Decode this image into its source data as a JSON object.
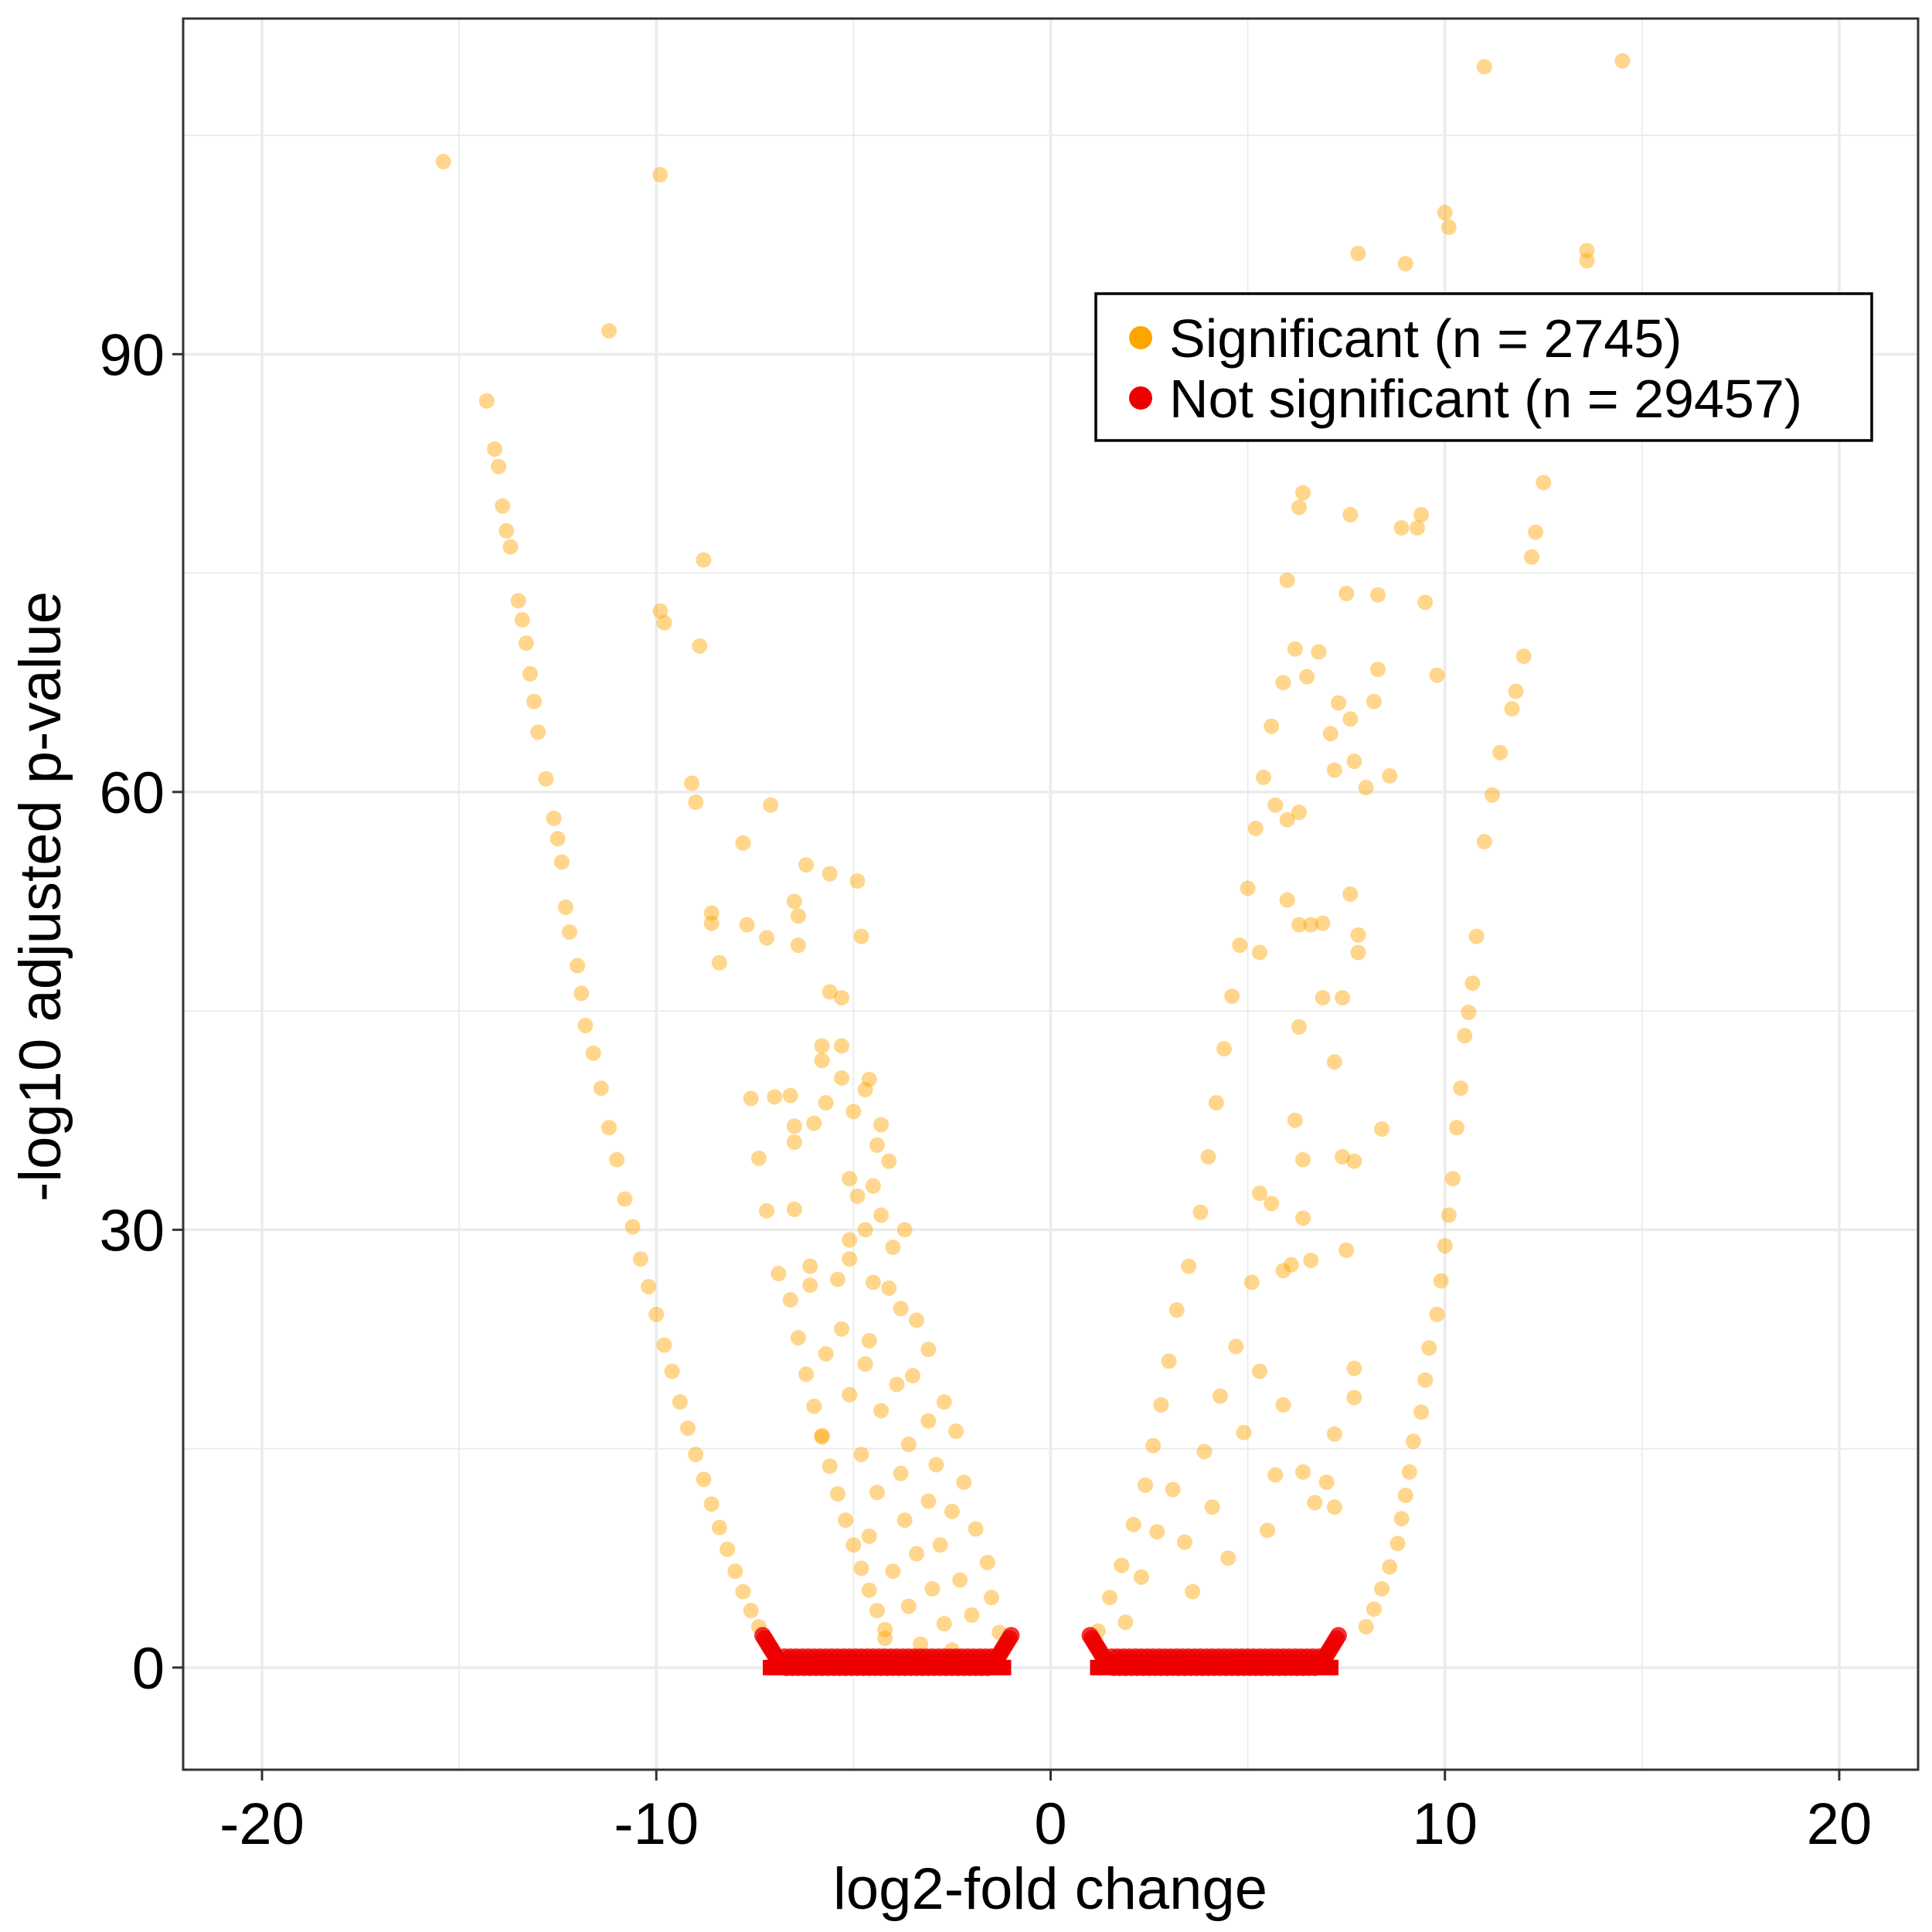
{
  "chart_data": {
    "type": "scatter",
    "title": "",
    "xlabel": "log2-fold change",
    "ylabel": "-log10 adjusted p-value",
    "xlim": [
      -22,
      22
    ],
    "ylim": [
      -7,
      113
    ],
    "x_ticks": [
      -20,
      -10,
      0,
      10,
      20
    ],
    "y_ticks": [
      0,
      30,
      60,
      90
    ],
    "x_tick_labels": [
      "-20",
      "-10",
      "0",
      "10",
      "20"
    ],
    "y_tick_labels": [
      "0",
      "30",
      "60",
      "90"
    ],
    "grid": true,
    "legend_position": "top-right",
    "series": [
      {
        "name": "Significant (n = 2745)",
        "color": "#FFA500",
        "points": [
          [
            -15.4,
            103.2
          ],
          [
            -14.3,
            86.8
          ],
          [
            -14.1,
            83.5
          ],
          [
            -14.0,
            82.3
          ],
          [
            -13.9,
            79.6
          ],
          [
            -13.8,
            77.9
          ],
          [
            -13.7,
            76.8
          ],
          [
            -13.5,
            73.1
          ],
          [
            -13.4,
            71.8
          ],
          [
            -13.3,
            70.2
          ],
          [
            -13.2,
            68.1
          ],
          [
            -13.1,
            66.2
          ],
          [
            -13.0,
            64.1
          ],
          [
            -12.8,
            60.9
          ],
          [
            -12.6,
            58.2
          ],
          [
            -12.5,
            56.8
          ],
          [
            -12.4,
            55.2
          ],
          [
            -12.3,
            52.1
          ],
          [
            -12.2,
            50.4
          ],
          [
            -12.0,
            48.1
          ],
          [
            -11.9,
            46.2
          ],
          [
            -11.8,
            44.0
          ],
          [
            -11.6,
            42.1
          ],
          [
            -11.4,
            39.7
          ],
          [
            -11.2,
            37.0
          ],
          [
            -11.0,
            34.8
          ],
          [
            -10.8,
            32.1
          ],
          [
            -10.6,
            30.2
          ],
          [
            -10.4,
            28.0
          ],
          [
            -10.2,
            26.1
          ],
          [
            -10.0,
            24.2
          ],
          [
            -9.8,
            22.1
          ],
          [
            -9.6,
            20.3
          ],
          [
            -9.4,
            18.2
          ],
          [
            -9.2,
            16.4
          ],
          [
            -9.0,
            14.6
          ],
          [
            -8.8,
            12.9
          ],
          [
            -8.6,
            11.2
          ],
          [
            -8.4,
            9.6
          ],
          [
            -8.2,
            8.1
          ],
          [
            -8.0,
            6.6
          ],
          [
            -7.8,
            5.2
          ],
          [
            -7.6,
            3.9
          ],
          [
            -7.4,
            2.8
          ],
          [
            -11.2,
            91.6
          ],
          [
            -9.9,
            102.3
          ],
          [
            -9.9,
            72.4
          ],
          [
            -9.8,
            71.6
          ],
          [
            -8.8,
            75.9
          ],
          [
            -8.9,
            70.0
          ],
          [
            -9.1,
            60.6
          ],
          [
            -9.0,
            59.3
          ],
          [
            -7.8,
            56.5
          ],
          [
            -7.1,
            59.1
          ],
          [
            -6.2,
            55.0
          ],
          [
            -5.6,
            54.4
          ],
          [
            -4.9,
            53.9
          ],
          [
            -6.5,
            52.5
          ],
          [
            -6.4,
            51.5
          ],
          [
            -8.6,
            51.7
          ],
          [
            -8.6,
            51.0
          ],
          [
            -7.7,
            50.9
          ],
          [
            -7.2,
            50.0
          ],
          [
            -6.4,
            49.5
          ],
          [
            -4.8,
            50.1
          ],
          [
            -8.4,
            48.3
          ],
          [
            -5.6,
            46.3
          ],
          [
            -5.3,
            45.9
          ],
          [
            -5.8,
            42.6
          ],
          [
            -5.3,
            42.6
          ],
          [
            -5.8,
            41.6
          ],
          [
            -5.3,
            40.4
          ],
          [
            -4.6,
            40.3
          ],
          [
            -7.6,
            39.0
          ],
          [
            -7.0,
            39.1
          ],
          [
            -6.6,
            39.2
          ],
          [
            -4.7,
            39.6
          ],
          [
            -5.7,
            38.7
          ],
          [
            -5.0,
            38.1
          ],
          [
            -6.5,
            37.1
          ],
          [
            -6.0,
            37.3
          ],
          [
            -4.3,
            37.2
          ],
          [
            -6.5,
            36.0
          ],
          [
            -4.4,
            35.8
          ],
          [
            -7.4,
            34.9
          ],
          [
            -4.1,
            34.7
          ],
          [
            -5.1,
            33.5
          ],
          [
            -4.5,
            33.0
          ],
          [
            -4.9,
            32.3
          ],
          [
            -6.5,
            31.4
          ],
          [
            -7.2,
            31.3
          ],
          [
            -4.3,
            31.0
          ],
          [
            -4.7,
            30.0
          ],
          [
            -3.7,
            30.0
          ],
          [
            -5.1,
            29.3
          ],
          [
            -4.0,
            28.8
          ],
          [
            -5.1,
            28.0
          ],
          [
            -6.1,
            27.5
          ],
          [
            -6.9,
            27.0
          ],
          [
            -5.4,
            26.6
          ],
          [
            -4.5,
            26.4
          ],
          [
            -6.1,
            26.2
          ],
          [
            -4.1,
            26.0
          ],
          [
            -3.8,
            24.6
          ],
          [
            -3.4,
            23.8
          ],
          [
            -5.3,
            23.2
          ],
          [
            -4.6,
            22.4
          ],
          [
            -3.1,
            21.8
          ],
          [
            -5.7,
            21.5
          ],
          [
            -4.7,
            20.8
          ],
          [
            -3.5,
            20.0
          ],
          [
            -3.9,
            19.4
          ],
          [
            -5.1,
            18.7
          ],
          [
            -2.7,
            18.2
          ],
          [
            -4.3,
            17.6
          ],
          [
            -3.1,
            16.9
          ],
          [
            -2.4,
            16.2
          ],
          [
            -5.8,
            15.9
          ],
          [
            -3.6,
            15.3
          ],
          [
            -4.8,
            14.6
          ],
          [
            -2.9,
            13.9
          ],
          [
            -3.8,
            13.3
          ],
          [
            -2.2,
            12.7
          ],
          [
            -4.4,
            12.0
          ],
          [
            -3.1,
            11.4
          ],
          [
            -2.5,
            10.7
          ],
          [
            -3.7,
            10.1
          ],
          [
            -1.9,
            9.5
          ],
          [
            -4.6,
            9.0
          ],
          [
            -2.8,
            8.4
          ],
          [
            -3.4,
            7.8
          ],
          [
            -1.6,
            7.2
          ],
          [
            -4.0,
            6.6
          ],
          [
            -2.3,
            6.0
          ],
          [
            -3.0,
            5.4
          ],
          [
            -1.5,
            4.8
          ],
          [
            -3.6,
            4.2
          ],
          [
            -2.0,
            3.6
          ],
          [
            -2.7,
            3.0
          ],
          [
            -1.3,
            2.4
          ],
          [
            -4.2,
            2.0
          ],
          [
            -3.3,
            1.6
          ],
          [
            -2.5,
            1.2
          ],
          [
            -6.6,
            25.2
          ],
          [
            -6.4,
            22.6
          ],
          [
            -6.2,
            20.1
          ],
          [
            -6.0,
            17.9
          ],
          [
            -5.8,
            15.8
          ],
          [
            -5.6,
            13.8
          ],
          [
            -5.4,
            11.9
          ],
          [
            -5.2,
            10.1
          ],
          [
            -5.0,
            8.4
          ],
          [
            -4.8,
            6.8
          ],
          [
            -4.6,
            5.3
          ],
          [
            -4.4,
            3.9
          ],
          [
            -4.2,
            2.6
          ],
          [
            1.2,
            2.5
          ],
          [
            1.5,
            4.8
          ],
          [
            1.8,
            7.0
          ],
          [
            2.1,
            9.8
          ],
          [
            2.4,
            12.5
          ],
          [
            2.6,
            15.2
          ],
          [
            2.8,
            18.0
          ],
          [
            3.0,
            21.0
          ],
          [
            3.2,
            24.5
          ],
          [
            3.5,
            27.5
          ],
          [
            3.8,
            31.2
          ],
          [
            4.0,
            35.0
          ],
          [
            4.2,
            38.7
          ],
          [
            4.4,
            42.4
          ],
          [
            4.6,
            46.0
          ],
          [
            4.8,
            49.5
          ],
          [
            5.0,
            53.4
          ],
          [
            5.2,
            57.5
          ],
          [
            5.4,
            61.0
          ],
          [
            5.6,
            64.5
          ],
          [
            5.9,
            67.5
          ],
          [
            6.2,
            69.8
          ],
          [
            1.9,
            3.1
          ],
          [
            2.3,
            6.2
          ],
          [
            2.7,
            9.3
          ],
          [
            3.1,
            12.2
          ],
          [
            3.4,
            8.6
          ],
          [
            3.6,
            5.2
          ],
          [
            3.9,
            14.8
          ],
          [
            4.1,
            11.0
          ],
          [
            4.3,
            18.6
          ],
          [
            4.5,
            7.5
          ],
          [
            4.7,
            22.0
          ],
          [
            4.9,
            16.1
          ],
          [
            5.1,
            26.4
          ],
          [
            5.3,
            20.3
          ],
          [
            5.5,
            9.4
          ],
          [
            5.7,
            13.2
          ],
          [
            5.9,
            18.0
          ],
          [
            6.1,
            27.6
          ],
          [
            6.4,
            80.5
          ],
          [
            6.3,
            79.5
          ],
          [
            6.5,
            67.9
          ],
          [
            6.8,
            69.6
          ],
          [
            7.1,
            64.0
          ],
          [
            7.2,
            61.5
          ],
          [
            7.3,
            66.1
          ],
          [
            7.6,
            65.0
          ],
          [
            7.7,
            62.1
          ],
          [
            8.0,
            60.3
          ],
          [
            8.2,
            66.2
          ],
          [
            8.3,
            68.4
          ],
          [
            8.6,
            61.1
          ],
          [
            7.6,
            79.0
          ],
          [
            8.3,
            73.5
          ],
          [
            8.9,
            78.1
          ],
          [
            9.3,
            78.1
          ],
          [
            9.4,
            79.0
          ],
          [
            9.5,
            73.0
          ],
          [
            9.8,
            68.0
          ],
          [
            7.5,
            73.6
          ],
          [
            6.0,
            74.5
          ],
          [
            6.0,
            58.1
          ],
          [
            6.3,
            58.6
          ],
          [
            5.7,
            59.1
          ],
          [
            7.6,
            53.0
          ],
          [
            6.0,
            52.6
          ],
          [
            6.3,
            50.9
          ],
          [
            6.6,
            50.9
          ],
          [
            6.9,
            51.0
          ],
          [
            7.8,
            50.2
          ],
          [
            7.8,
            49.0
          ],
          [
            5.3,
            49.0
          ],
          [
            6.9,
            45.9
          ],
          [
            7.4,
            45.9
          ],
          [
            6.3,
            43.9
          ],
          [
            7.2,
            41.5
          ],
          [
            8.4,
            36.9
          ],
          [
            6.2,
            37.5
          ],
          [
            6.4,
            34.8
          ],
          [
            7.7,
            34.7
          ],
          [
            5.3,
            32.5
          ],
          [
            5.6,
            31.8
          ],
          [
            6.4,
            30.8
          ],
          [
            7.4,
            35.0
          ],
          [
            7.5,
            28.6
          ],
          [
            6.6,
            27.9
          ],
          [
            5.9,
            27.2
          ],
          [
            7.7,
            20.5
          ],
          [
            7.7,
            18.5
          ],
          [
            7.2,
            16.0
          ],
          [
            6.7,
            11.3
          ],
          [
            7.2,
            11.0
          ],
          [
            7.0,
            12.7
          ],
          [
            6.4,
            13.4
          ],
          [
            11.0,
            109.7
          ],
          [
            14.5,
            110.1
          ],
          [
            10.0,
            99.7
          ],
          [
            10.1,
            98.7
          ],
          [
            13.6,
            97.1
          ],
          [
            13.6,
            96.4
          ],
          [
            7.8,
            96.9
          ],
          [
            9.0,
            96.2
          ],
          [
            12.8,
            85.2
          ],
          [
            7.5,
            85.9
          ],
          [
            12.5,
            81.2
          ],
          [
            12.3,
            77.8
          ],
          [
            12.2,
            76.1
          ],
          [
            12.0,
            69.3
          ],
          [
            11.8,
            66.9
          ],
          [
            11.7,
            65.7
          ],
          [
            11.4,
            62.7
          ],
          [
            11.2,
            59.8
          ],
          [
            11.0,
            56.6
          ],
          [
            10.8,
            50.1
          ],
          [
            10.7,
            46.9
          ],
          [
            10.6,
            44.9
          ],
          [
            10.5,
            43.3
          ],
          [
            10.4,
            39.7
          ],
          [
            10.3,
            37.0
          ],
          [
            10.2,
            33.5
          ],
          [
            10.1,
            31.0
          ],
          [
            10.0,
            28.9
          ],
          [
            9.9,
            26.5
          ],
          [
            9.8,
            24.2
          ],
          [
            9.6,
            21.9
          ],
          [
            9.5,
            19.7
          ],
          [
            9.4,
            17.5
          ],
          [
            9.2,
            15.5
          ],
          [
            9.1,
            13.4
          ],
          [
            9.0,
            11.8
          ],
          [
            8.9,
            10.2
          ],
          [
            8.8,
            8.5
          ],
          [
            8.6,
            6.9
          ],
          [
            8.4,
            5.4
          ],
          [
            8.2,
            4.0
          ],
          [
            8.0,
            2.8
          ]
        ]
      },
      {
        "name": "Not significant (n = 29457)",
        "color": "#EE0000",
        "x_ranges": [
          [
            -7.3,
            -1.0
          ],
          [
            1.0,
            7.3
          ]
        ],
        "y_max": 2.2
      }
    ]
  },
  "legend": {
    "items": [
      {
        "label": "Significant (n = 2745)",
        "color": "#FFA500"
      },
      {
        "label": "Not significant (n = 29457)",
        "color": "#EE0000"
      }
    ]
  }
}
